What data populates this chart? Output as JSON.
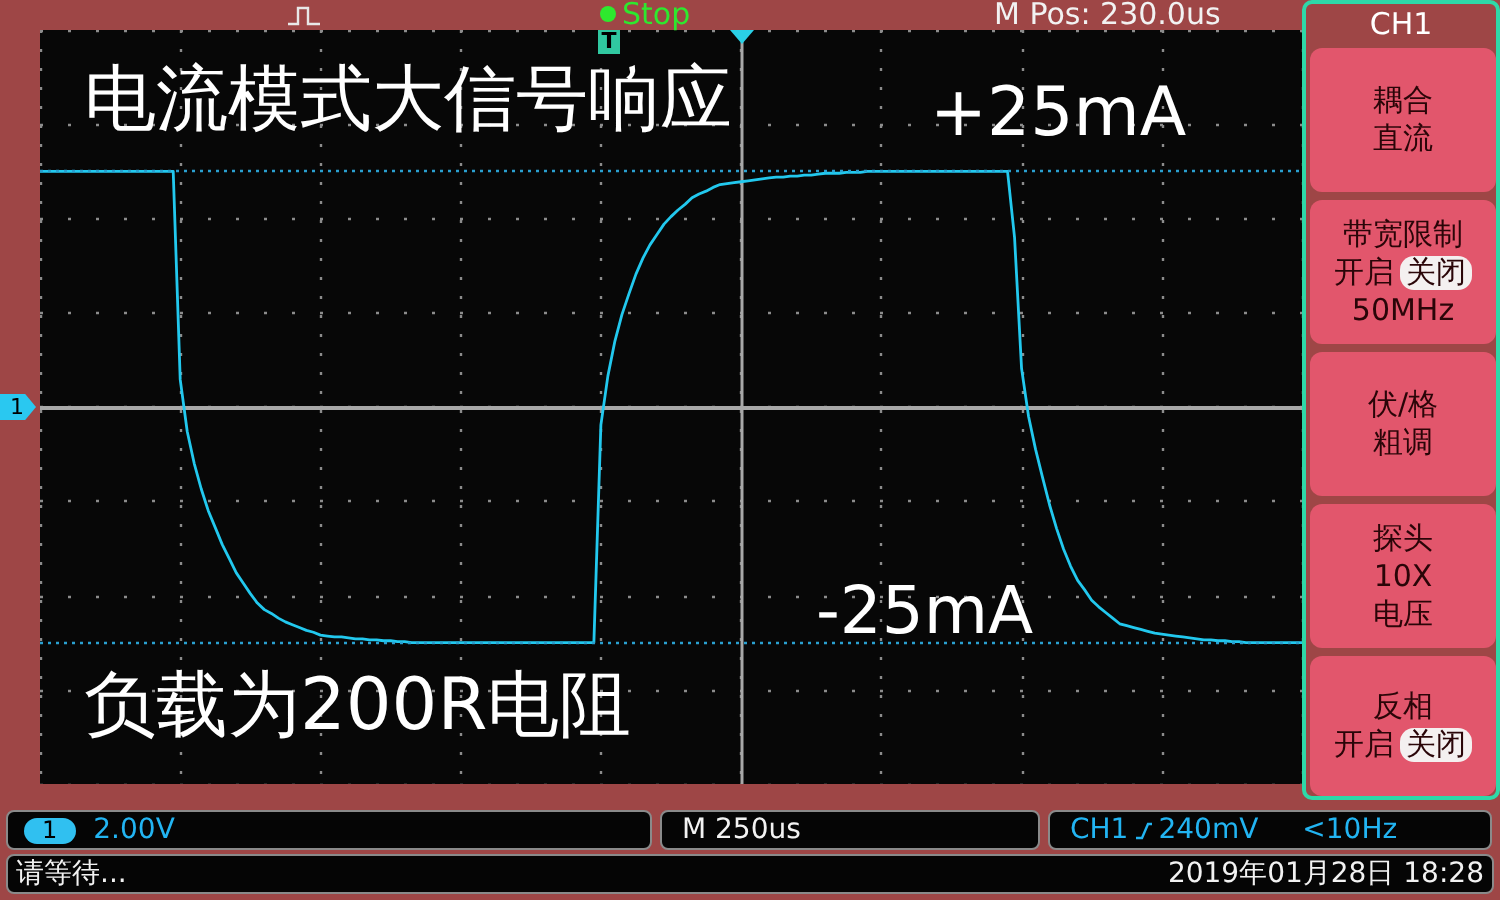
{
  "chart_data": {
    "type": "line",
    "title": "电流模式大信号响应",
    "annotations": [
      "负载为200R电阻",
      "Stop",
      "M Pos: 230.0us",
      "T",
      "1",
      "CH1",
      "耦合",
      "直流",
      "带宽限制",
      "开启",
      "关闭",
      "50MHz",
      "伏/格",
      "粗调",
      "探头",
      "10X",
      "电压",
      "反相",
      "开启",
      "关闭",
      "1",
      "2.00V",
      "M 250us",
      "CH1",
      "240mV",
      "<10Hz",
      "请等待...",
      "2019年01月28日 18:28"
    ],
    "categories": [
      null,
      null,
      null,
      null,
      null,
      null,
      null,
      null,
      null,
      null,
      null,
      null,
      null,
      null,
      null,
      null,
      null,
      null,
      null,
      null,
      null,
      null,
      null,
      null,
      null,
      null,
      null,
      null,
      null,
      null,
      null,
      null,
      null,
      null,
      null,
      null,
      null,
      null,
      null,
      null,
      null,
      null,
      null,
      null,
      null,
      null,
      null,
      null,
      null,
      null,
      null,
      null,
      null,
      null,
      null,
      null,
      null,
      null,
      null,
      null,
      null,
      null,
      null,
      null,
      null,
      null,
      null,
      null,
      null,
      null,
      null,
      null,
      null,
      null,
      null,
      null,
      null,
      null,
      null,
      null,
      null,
      null,
      null,
      null,
      null,
      null,
      null,
      null,
      null,
      null,
      null,
      null,
      null,
      null,
      null,
      null,
      null,
      null,
      null,
      null,
      null,
      null,
      null,
      null,
      null,
      null,
      null,
      null,
      null,
      null,
      null,
      null,
      null,
      null,
      null,
      null,
      null,
      null,
      null,
      null,
      null,
      null,
      null,
      null,
      null,
      null,
      null,
      null,
      null,
      null,
      null,
      null,
      null,
      null,
      null,
      null,
      null,
      null,
      null,
      null,
      null,
      null,
      null,
      null,
      null,
      null,
      null,
      null,
      null,
      null,
      null,
      null,
      null,
      null,
      null,
      null,
      null,
      null,
      null,
      null,
      null,
      null,
      null,
      null,
      null,
      null,
      null,
      null,
      null,
      null,
      null,
      null,
      null,
      null,
      null,
      null,
      null,
      null,
      null,
      null,
      null
    ],
    "values": [
      25,
      25,
      25,
      25,
      25,
      25,
      25,
      25,
      25,
      25,
      25,
      25,
      25,
      25,
      25,
      25,
      25,
      25,
      25,
      25,
      2.9,
      -2.6,
      -6.0,
      -8.7,
      -11.0,
      -12.8,
      -14.6,
      -16.1,
      -17.6,
      -18.7,
      -19.8,
      -20.8,
      -21.5,
      -21.9,
      -22.4,
      -22.8,
      -23.1,
      -23.4,
      -23.7,
      -23.9,
      -24.2,
      -24.3,
      -24.4,
      -24.4,
      -24.5,
      -24.6,
      -24.6,
      -24.7,
      -24.7,
      -24.8,
      -24.8,
      -24.9,
      -24.9,
      -25,
      -25,
      -25,
      -25,
      -25,
      -25,
      -25,
      -25,
      -25,
      -25,
      -25,
      -25,
      -25,
      -25,
      -25,
      -25,
      -25,
      -25,
      -25,
      -25,
      -25,
      -25,
      -25,
      -25,
      -25,
      -25,
      -25,
      -1.9,
      3.3,
      7.0,
      9.8,
      12.0,
      14.1,
      15.8,
      17.2,
      18.3,
      19.4,
      20.2,
      20.9,
      21.5,
      22.2,
      22.6,
      22.9,
      23.3,
      23.6,
      23.7,
      23.8,
      23.9,
      24.0,
      24.1,
      24.2,
      24.3,
      24.4,
      24.4,
      24.5,
      24.5,
      24.6,
      24.6,
      24.7,
      24.8,
      24.8,
      24.8,
      24.9,
      24.9,
      24.9,
      25,
      25,
      25,
      25,
      25,
      25,
      25,
      25,
      25,
      25,
      25,
      25,
      25,
      25,
      25,
      25,
      25,
      25,
      25,
      25,
      25,
      18,
      4.1,
      -1.0,
      -4.5,
      -7.5,
      -10.4,
      -12.9,
      -15.1,
      -16.9,
      -18.4,
      -19.4,
      -20.5,
      -21.2,
      -21.8,
      -22.4,
      -23.0,
      -23.2,
      -23.4,
      -23.6,
      -23.8,
      -24.0,
      -24.1,
      -24.2,
      -24.3,
      -24.4,
      -24.5,
      -24.6,
      -24.7,
      -24.7,
      -24.8,
      -24.8,
      -24.9,
      -24.9,
      -25,
      -25,
      -25,
      -25,
      -25,
      -25,
      -25,
      -25,
      -25
    ],
    "color": "#22c8ee",
    "ylim": [
      -40,
      40
    ],
    "yticks": [
      {
        "value": -40,
        "label": null
      },
      {
        "value": -30,
        "label": null
      },
      {
        "value": -20,
        "label": null
      },
      {
        "value": -10,
        "label": null
      },
      {
        "value": 0,
        "label": null
      },
      {
        "value": 10,
        "label": null
      },
      {
        "value": 20,
        "label": null
      },
      {
        "value": 30,
        "label": null
      },
      {
        "value": 40,
        "label": null
      }
    ],
    "grid": true,
    "tick_labels": false,
    "marker": "none",
    "ref_lines": [
      {
        "axis": "y",
        "value": 25,
        "label": "+25mA",
        "color": "#2aa0d0",
        "line_style": "dotted"
      },
      {
        "axis": "y",
        "value": -25,
        "label": "-25mA",
        "color": "#2aa0d0",
        "line_style": "dotted"
      }
    ]
  }
}
